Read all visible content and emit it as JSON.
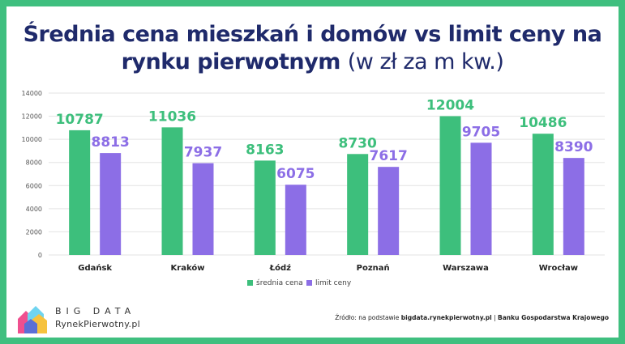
{
  "title_bold_1": "Średnia cena mieszkań i domów vs limit ceny na",
  "title_bold_2": "rynku pierwotnym",
  "title_light": "(w zł za m kw.)",
  "colors": {
    "background": "#3fbf7f",
    "title": "#1f2a6b",
    "series_1": "#3dbf7c",
    "series_2": "#8c6ee6"
  },
  "chart_data": {
    "type": "bar",
    "categories": [
      "Gdańsk",
      "Kraków",
      "Łódź",
      "Poznań",
      "Warszawa",
      "Wrocław"
    ],
    "series": [
      {
        "name": "średnia cena",
        "values": [
          10787,
          11036,
          8163,
          8730,
          12004,
          10486
        ],
        "color": "#3dbf7c"
      },
      {
        "name": "limit ceny",
        "values": [
          8813,
          7937,
          6075,
          7617,
          9705,
          8390
        ],
        "color": "#8c6ee6"
      }
    ],
    "yticks": [
      0,
      2000,
      4000,
      6000,
      8000,
      10000,
      12000,
      14000
    ],
    "ylim": [
      0,
      14000
    ],
    "grid": true,
    "legend": "bottom-center"
  },
  "logo": {
    "top": "BIG DATA",
    "bottom": "RynekPierwotny.pl"
  },
  "source": {
    "prefix": "Źródło: na podstawie ",
    "site": "bigdata.rynekpierwotny.pl",
    "sep": " | ",
    "bank": "Banku Gospodarstwa Krajowego"
  }
}
